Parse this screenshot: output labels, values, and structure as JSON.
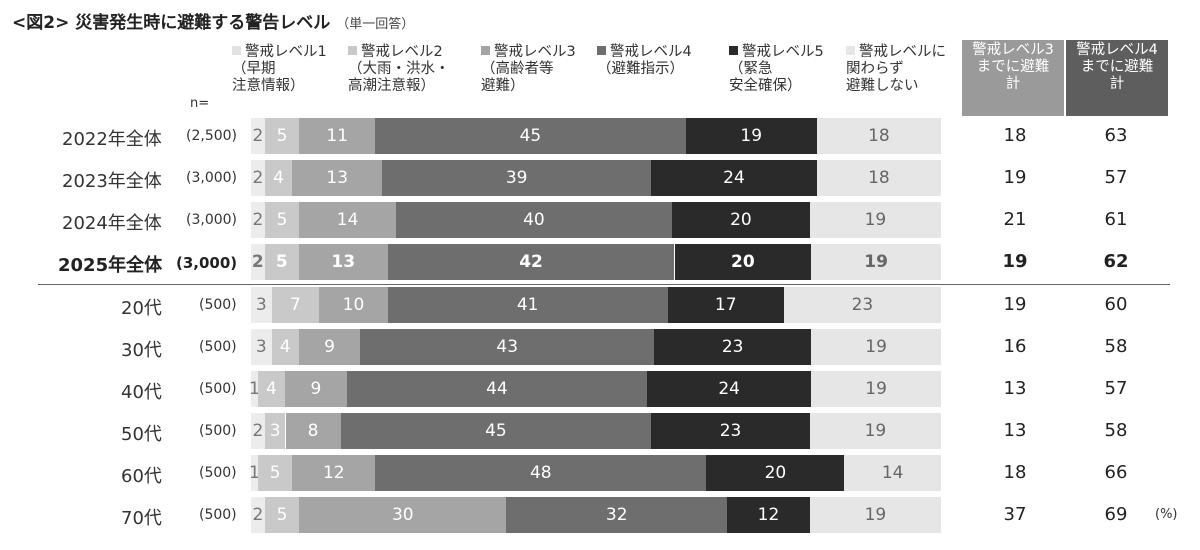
{
  "title": "<図2> 災害発生時に避難する警告レベル",
  "title_note": "（単一回答）",
  "n_label": "n=",
  "unit_label": "(%)",
  "colors": {
    "level1": "#ececec",
    "level2": "#c9c9c9",
    "level3": "#a5a5a5",
    "level4": "#6e6e6e",
    "level5": "#2a2a2a",
    "none": "#e6e6e6",
    "sum3_header": "#9a9a9a",
    "sum4_header": "#5e5e5e"
  },
  "legend": [
    {
      "label": "警戒レベル1\n（早期\n注意情報）",
      "color": "#e2e2e2"
    },
    {
      "label": "警戒レベル2\n（大雨・洪水・\n高潮注意報）",
      "color": "#c9c9c9"
    },
    {
      "label": "警戒レベル3\n（高齢者等\n避難）",
      "color": "#a5a5a5"
    },
    {
      "label": "警戒レベル4\n（避難指示）",
      "color": "#6e6e6e"
    },
    {
      "label": "警戒レベル5\n（緊急\n安全確保）",
      "color": "#2a2a2a"
    },
    {
      "label": "警戒レベルに\n関わらず\n避難しない",
      "color": "#e6e6e6"
    }
  ],
  "sum_headers": [
    "警戒レベル3\nまでに避難\n計",
    "警戒レベル4\nまでに避難\n計"
  ],
  "chart_data": {
    "type": "bar",
    "orientation": "horizontal-stacked-100",
    "series_names": [
      "警戒レベル1（早期注意情報）",
      "警戒レベル2（大雨・洪水・高潮注意報）",
      "警戒レベル3（高齢者等避難）",
      "警戒レベル4（避難指示）",
      "警戒レベル5（緊急安全確保）",
      "警戒レベルに関わらず避難しない"
    ],
    "rows": [
      {
        "label": "2022年全体",
        "n": "(2,500)",
        "values": [
          2,
          5,
          11,
          45,
          19,
          18
        ],
        "sum3": 18,
        "sum4": 63,
        "bold": false
      },
      {
        "label": "2023年全体",
        "n": "(3,000)",
        "values": [
          2,
          4,
          13,
          39,
          24,
          18
        ],
        "sum3": 19,
        "sum4": 57,
        "bold": false
      },
      {
        "label": "2024年全体",
        "n": "(3,000)",
        "values": [
          2,
          5,
          14,
          40,
          20,
          19
        ],
        "sum3": 21,
        "sum4": 61,
        "bold": false
      },
      {
        "label": "2025年全体",
        "n": "(3,000)",
        "values": [
          2,
          5,
          13,
          42,
          20,
          19
        ],
        "sum3": 19,
        "sum4": 62,
        "bold": true
      },
      {
        "label": "20代",
        "n": "(500)",
        "values": [
          3,
          7,
          10,
          41,
          17,
          23
        ],
        "sum3": 19,
        "sum4": 60,
        "bold": false
      },
      {
        "label": "30代",
        "n": "(500)",
        "values": [
          3,
          4,
          9,
          43,
          23,
          19
        ],
        "sum3": 16,
        "sum4": 58,
        "bold": false
      },
      {
        "label": "40代",
        "n": "(500)",
        "values": [
          1,
          4,
          9,
          44,
          24,
          19
        ],
        "sum3": 13,
        "sum4": 57,
        "bold": false
      },
      {
        "label": "50代",
        "n": "(500)",
        "values": [
          2,
          3,
          8,
          45,
          23,
          19
        ],
        "sum3": 13,
        "sum4": 58,
        "bold": false
      },
      {
        "label": "60代",
        "n": "(500)",
        "values": [
          1,
          5,
          12,
          48,
          20,
          14
        ],
        "sum3": 18,
        "sum4": 66,
        "bold": false
      },
      {
        "label": "70代",
        "n": "(500)",
        "values": [
          2,
          5,
          30,
          32,
          12,
          19
        ],
        "sum3": 37,
        "sum4": 69,
        "bold": false
      }
    ]
  }
}
